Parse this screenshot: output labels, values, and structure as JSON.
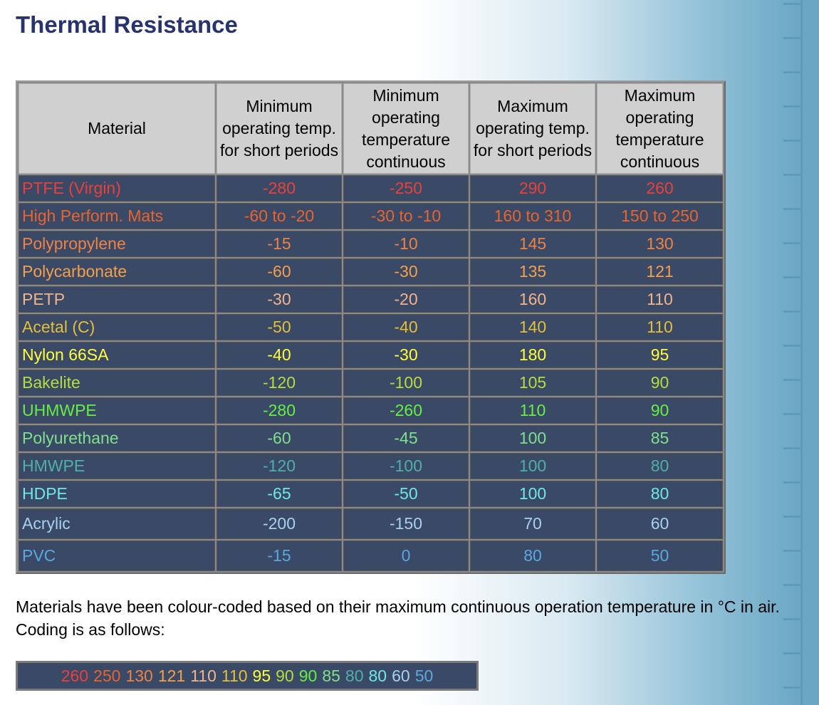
{
  "title": "Thermal Resistance",
  "table": {
    "headers": [
      "Material",
      "Minimum operating temp. for short periods",
      "Minimum operating temperature continuous",
      "Maximum operating temp. for short periods",
      "Maximum operating temperature continuous"
    ],
    "rows": [
      {
        "material": "PTFE (Virgin)",
        "min_short": "-280",
        "min_cont": "-250",
        "max_short": "290",
        "max_cont": "260",
        "color": "#e8413c"
      },
      {
        "material": "High Perform. Mats",
        "min_short": "-60 to -20",
        "min_cont": "-30 to -10",
        "max_short": "160 to 310",
        "max_cont": "150 to 250",
        "color": "#e8642f"
      },
      {
        "material": "Polypropylene",
        "min_short": "-15",
        "min_cont": "-10",
        "max_short": "145",
        "max_cont": "130",
        "color": "#ee8244"
      },
      {
        "material": "Polycarbonate",
        "min_short": "-60",
        "min_cont": "-30",
        "max_short": "135",
        "max_cont": "121",
        "color": "#f4a04a"
      },
      {
        "material": "PETP",
        "min_short": "-30",
        "min_cont": "-20",
        "max_short": "160",
        "max_cont": "110",
        "color": "#f0b48c"
      },
      {
        "material": "Acetal (C)",
        "min_short": "-50",
        "min_cont": "-40",
        "max_short": "140",
        "max_cont": "110",
        "color": "#e3bf3a"
      },
      {
        "material": "Nylon 66SA",
        "min_short": "-40",
        "min_cont": "-30",
        "max_short": "180",
        "max_cont": "95",
        "color": "#ffff3a"
      },
      {
        "material": "Bakelite",
        "min_short": "-120",
        "min_cont": "-100",
        "max_short": "105",
        "max_cont": "90",
        "color": "#b7dc3e"
      },
      {
        "material": "UHMWPE",
        "min_short": "-280",
        "min_cont": "-260",
        "max_short": "110",
        "max_cont": "90",
        "color": "#66ee44"
      },
      {
        "material": "Polyurethane",
        "min_short": "-60",
        "min_cont": "-45",
        "max_short": "100",
        "max_cont": "85",
        "color": "#7ee08a"
      },
      {
        "material": "HMWPE",
        "min_short": "-120",
        "min_cont": "-100",
        "max_short": "100",
        "max_cont": "80",
        "color": "#4fb0a8"
      },
      {
        "material": "HDPE",
        "min_short": "-65",
        "min_cont": "-50",
        "max_short": "100",
        "max_cont": "80",
        "color": "#6ee8e0"
      },
      {
        "material": "Acrylic",
        "min_short": "-200",
        "min_cont": "-150",
        "max_short": "70",
        "max_cont": "60",
        "color": "#a8d0f0"
      },
      {
        "material": "PVC",
        "min_short": "-15",
        "min_cont": "0",
        "max_short": "80",
        "max_cont": "50",
        "color": "#5aa8e0"
      }
    ]
  },
  "note": "Materials have been colour-coded based on their maximum continuous operation temperature in °C in air. Coding is as follows:",
  "legend": [
    {
      "value": "260",
      "color": "#e8413c"
    },
    {
      "value": "250",
      "color": "#e8642f"
    },
    {
      "value": "130",
      "color": "#ee8244"
    },
    {
      "value": "121",
      "color": "#f4a04a"
    },
    {
      "value": "110",
      "color": "#f0b48c"
    },
    {
      "value": "110",
      "color": "#e3bf3a"
    },
    {
      "value": "95",
      "color": "#ffff3a"
    },
    {
      "value": "90",
      "color": "#b7dc3e"
    },
    {
      "value": "90",
      "color": "#66ee44"
    },
    {
      "value": "85",
      "color": "#7ee08a"
    },
    {
      "value": "80",
      "color": "#4fb0a8"
    },
    {
      "value": "80",
      "color": "#6ee8e0"
    },
    {
      "value": "60",
      "color": "#a8d0f0"
    },
    {
      "value": "50",
      "color": "#5aa8e0"
    }
  ]
}
